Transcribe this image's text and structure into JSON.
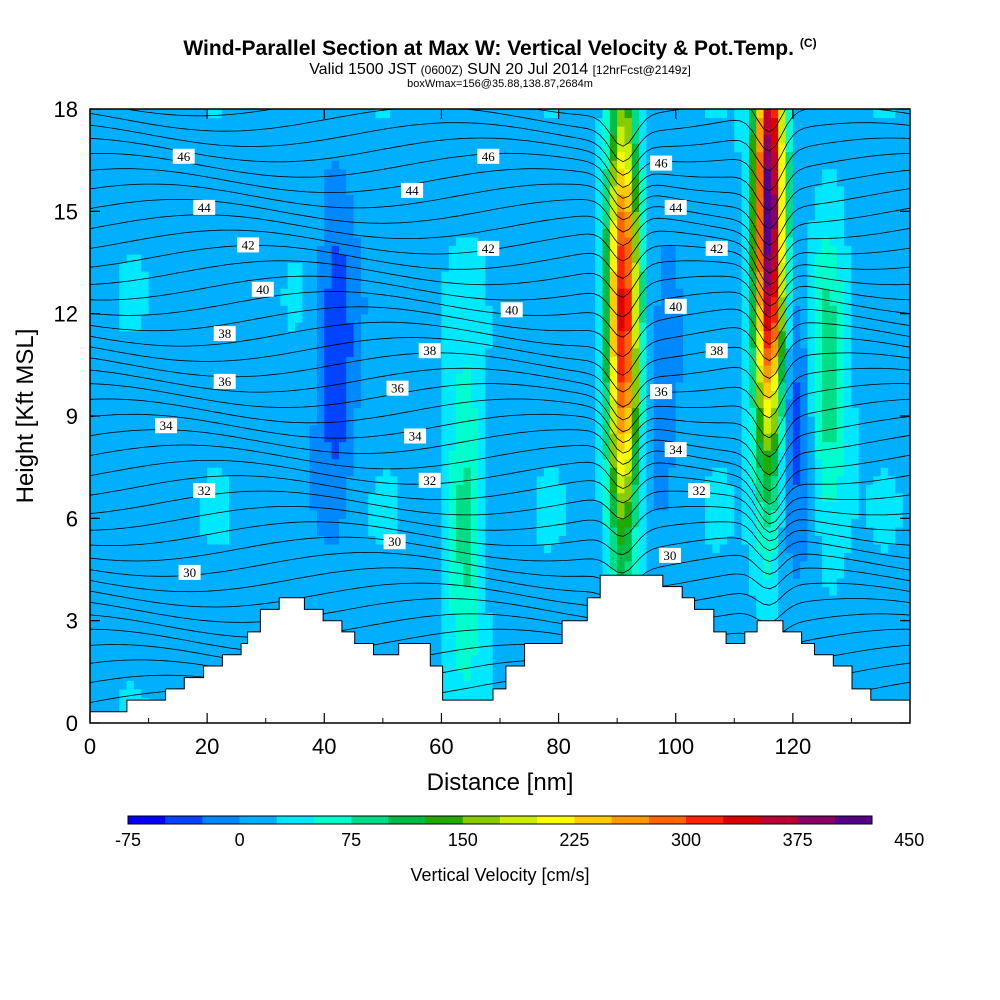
{
  "title": "Wind-Parallel Section at Max W: Vertical Velocity & Pot.Temp.",
  "title_mark": "(C)",
  "subtitle": {
    "valid": "Valid 1500 JST",
    "utc": "(0600Z)",
    "date": "SUN 20 Jul 2014",
    "fcst": "[12hrFcst@2149z]"
  },
  "box_info": "boxWmax=156@35.88,138.87,2684m",
  "chart_data": {
    "type": "heatmap",
    "xlabel": "Distance [nm]",
    "ylabel": "Height [Kft MSL]",
    "xlim": [
      0,
      140
    ],
    "ylim": [
      0,
      18
    ],
    "x_ticks": [
      "0",
      "20",
      "40",
      "60",
      "80",
      "100",
      "120"
    ],
    "y_ticks": [
      "0",
      "3",
      "6",
      "9",
      "12",
      "15",
      "18"
    ],
    "colorbar": {
      "label": "Vertical Velocity [cm/s]",
      "ticks": [
        "-75",
        "0",
        "75",
        "150",
        "225",
        "300",
        "375",
        "450"
      ],
      "levels_start": -75,
      "levels_step": 25,
      "colors": [
        "#0000ff",
        "#0044ff",
        "#0088ff",
        "#00b0ff",
        "#00e8ff",
        "#00ffcc",
        "#00dd88",
        "#00bb44",
        "#22aa00",
        "#88cc00",
        "#ccee00",
        "#ffff00",
        "#ffcc00",
        "#ff9900",
        "#ff6600",
        "#ff2200",
        "#dd0000",
        "#bb0033",
        "#880066",
        "#550088"
      ]
    },
    "vertical_velocity_features": [
      {
        "x": 42,
        "z": 11,
        "peak": -75
      },
      {
        "x": 64,
        "z": 6,
        "peak": 70
      },
      {
        "x": 91,
        "z": 12,
        "peak": 300
      },
      {
        "x": 116,
        "z": 15,
        "peak": 400
      },
      {
        "x": 126,
        "z": 10,
        "peak": 70
      },
      {
        "x": 120,
        "z": 10,
        "peak": -70
      },
      {
        "x": 98,
        "z": 11,
        "peak": -40
      }
    ],
    "theta_contour_labels": [
      {
        "text": "46",
        "x": 16,
        "y": 16.6
      },
      {
        "text": "44",
        "x": 19.5,
        "y": 15.1
      },
      {
        "text": "42",
        "x": 27,
        "y": 14
      },
      {
        "text": "40",
        "x": 29.5,
        "y": 12.7
      },
      {
        "text": "38",
        "x": 23,
        "y": 11.4
      },
      {
        "text": "36",
        "x": 23,
        "y": 10
      },
      {
        "text": "34",
        "x": 13,
        "y": 8.7
      },
      {
        "text": "32",
        "x": 19.5,
        "y": 6.8
      },
      {
        "text": "30",
        "x": 17,
        "y": 4.4
      },
      {
        "text": "46",
        "x": 68,
        "y": 16.6
      },
      {
        "text": "44",
        "x": 55,
        "y": 15.6
      },
      {
        "text": "42",
        "x": 68,
        "y": 13.9
      },
      {
        "text": "40",
        "x": 72,
        "y": 12.1
      },
      {
        "text": "38",
        "x": 58,
        "y": 10.9
      },
      {
        "text": "36",
        "x": 52.5,
        "y": 9.8
      },
      {
        "text": "34",
        "x": 55.5,
        "y": 8.4
      },
      {
        "text": "32",
        "x": 58,
        "y": 7.1
      },
      {
        "text": "30",
        "x": 52,
        "y": 5.3
      },
      {
        "text": "46",
        "x": 97.5,
        "y": 16.4
      },
      {
        "text": "44",
        "x": 100,
        "y": 15.1
      },
      {
        "text": "42",
        "x": 107,
        "y": 13.9
      },
      {
        "text": "40",
        "x": 100,
        "y": 12.2
      },
      {
        "text": "38",
        "x": 107,
        "y": 10.9
      },
      {
        "text": "36",
        "x": 97.5,
        "y": 9.7
      },
      {
        "text": "34",
        "x": 100,
        "y": 8
      },
      {
        "text": "32",
        "x": 104,
        "y": 6.8
      },
      {
        "text": "30",
        "x": 99,
        "y": 4.9
      }
    ],
    "terrain_profile": [
      [
        0,
        0.33
      ],
      [
        6.3,
        0.33
      ],
      [
        6.3,
        0.67
      ],
      [
        12.9,
        0.67
      ],
      [
        12.9,
        1.0
      ],
      [
        16.1,
        1.0
      ],
      [
        16.1,
        1.33
      ],
      [
        19.4,
        1.33
      ],
      [
        19.4,
        1.67
      ],
      [
        22.6,
        1.67
      ],
      [
        22.6,
        2.0
      ],
      [
        25.8,
        2.0
      ],
      [
        25.8,
        2.33
      ],
      [
        26.9,
        2.33
      ],
      [
        26.9,
        2.67
      ],
      [
        29.1,
        2.67
      ],
      [
        29.1,
        3.33
      ],
      [
        32.3,
        3.33
      ],
      [
        32.3,
        3.67
      ],
      [
        36.6,
        3.67
      ],
      [
        36.6,
        3.33
      ],
      [
        39.8,
        3.33
      ],
      [
        39.8,
        3.0
      ],
      [
        43.0,
        3.0
      ],
      [
        43.0,
        2.67
      ],
      [
        45.2,
        2.67
      ],
      [
        45.2,
        2.33
      ],
      [
        48.4,
        2.33
      ],
      [
        48.4,
        2.0
      ],
      [
        51.6,
        2.0
      ],
      [
        51.6,
        2.0
      ],
      [
        52.7,
        2.0
      ],
      [
        52.7,
        2.33
      ],
      [
        58.1,
        2.33
      ],
      [
        58.1,
        1.67
      ],
      [
        60.2,
        1.67
      ],
      [
        60.2,
        0.67
      ],
      [
        62.4,
        0.67
      ],
      [
        62.4,
        0.67
      ],
      [
        68.8,
        0.67
      ],
      [
        68.8,
        1.0
      ],
      [
        71.0,
        1.0
      ],
      [
        71.0,
        1.67
      ],
      [
        74.2,
        1.67
      ],
      [
        74.2,
        2.33
      ],
      [
        80.6,
        2.33
      ],
      [
        80.6,
        3.0
      ],
      [
        84.9,
        3.0
      ],
      [
        84.9,
        3.67
      ],
      [
        87.1,
        3.67
      ],
      [
        87.1,
        4.33
      ],
      [
        97.8,
        4.33
      ],
      [
        97.8,
        4.0
      ],
      [
        101.1,
        4.0
      ],
      [
        101.1,
        3.67
      ],
      [
        103.2,
        3.67
      ],
      [
        103.2,
        3.33
      ],
      [
        106.5,
        3.33
      ],
      [
        106.5,
        2.67
      ],
      [
        108.6,
        2.67
      ],
      [
        108.6,
        2.33
      ],
      [
        111.8,
        2.33
      ],
      [
        111.8,
        2.67
      ],
      [
        113.9,
        2.67
      ],
      [
        113.9,
        3.0
      ],
      [
        118.3,
        3.0
      ],
      [
        118.3,
        2.67
      ],
      [
        121.5,
        2.67
      ],
      [
        121.5,
        2.33
      ],
      [
        123.7,
        2.33
      ],
      [
        123.7,
        2.0
      ],
      [
        126.9,
        2.0
      ],
      [
        126.9,
        1.67
      ],
      [
        130.1,
        1.67
      ],
      [
        130.1,
        1.0
      ],
      [
        133.3,
        1.0
      ],
      [
        133.3,
        0.67
      ],
      [
        136.6,
        0.67
      ],
      [
        136.6,
        0.67
      ],
      [
        140,
        0.67
      ]
    ]
  }
}
